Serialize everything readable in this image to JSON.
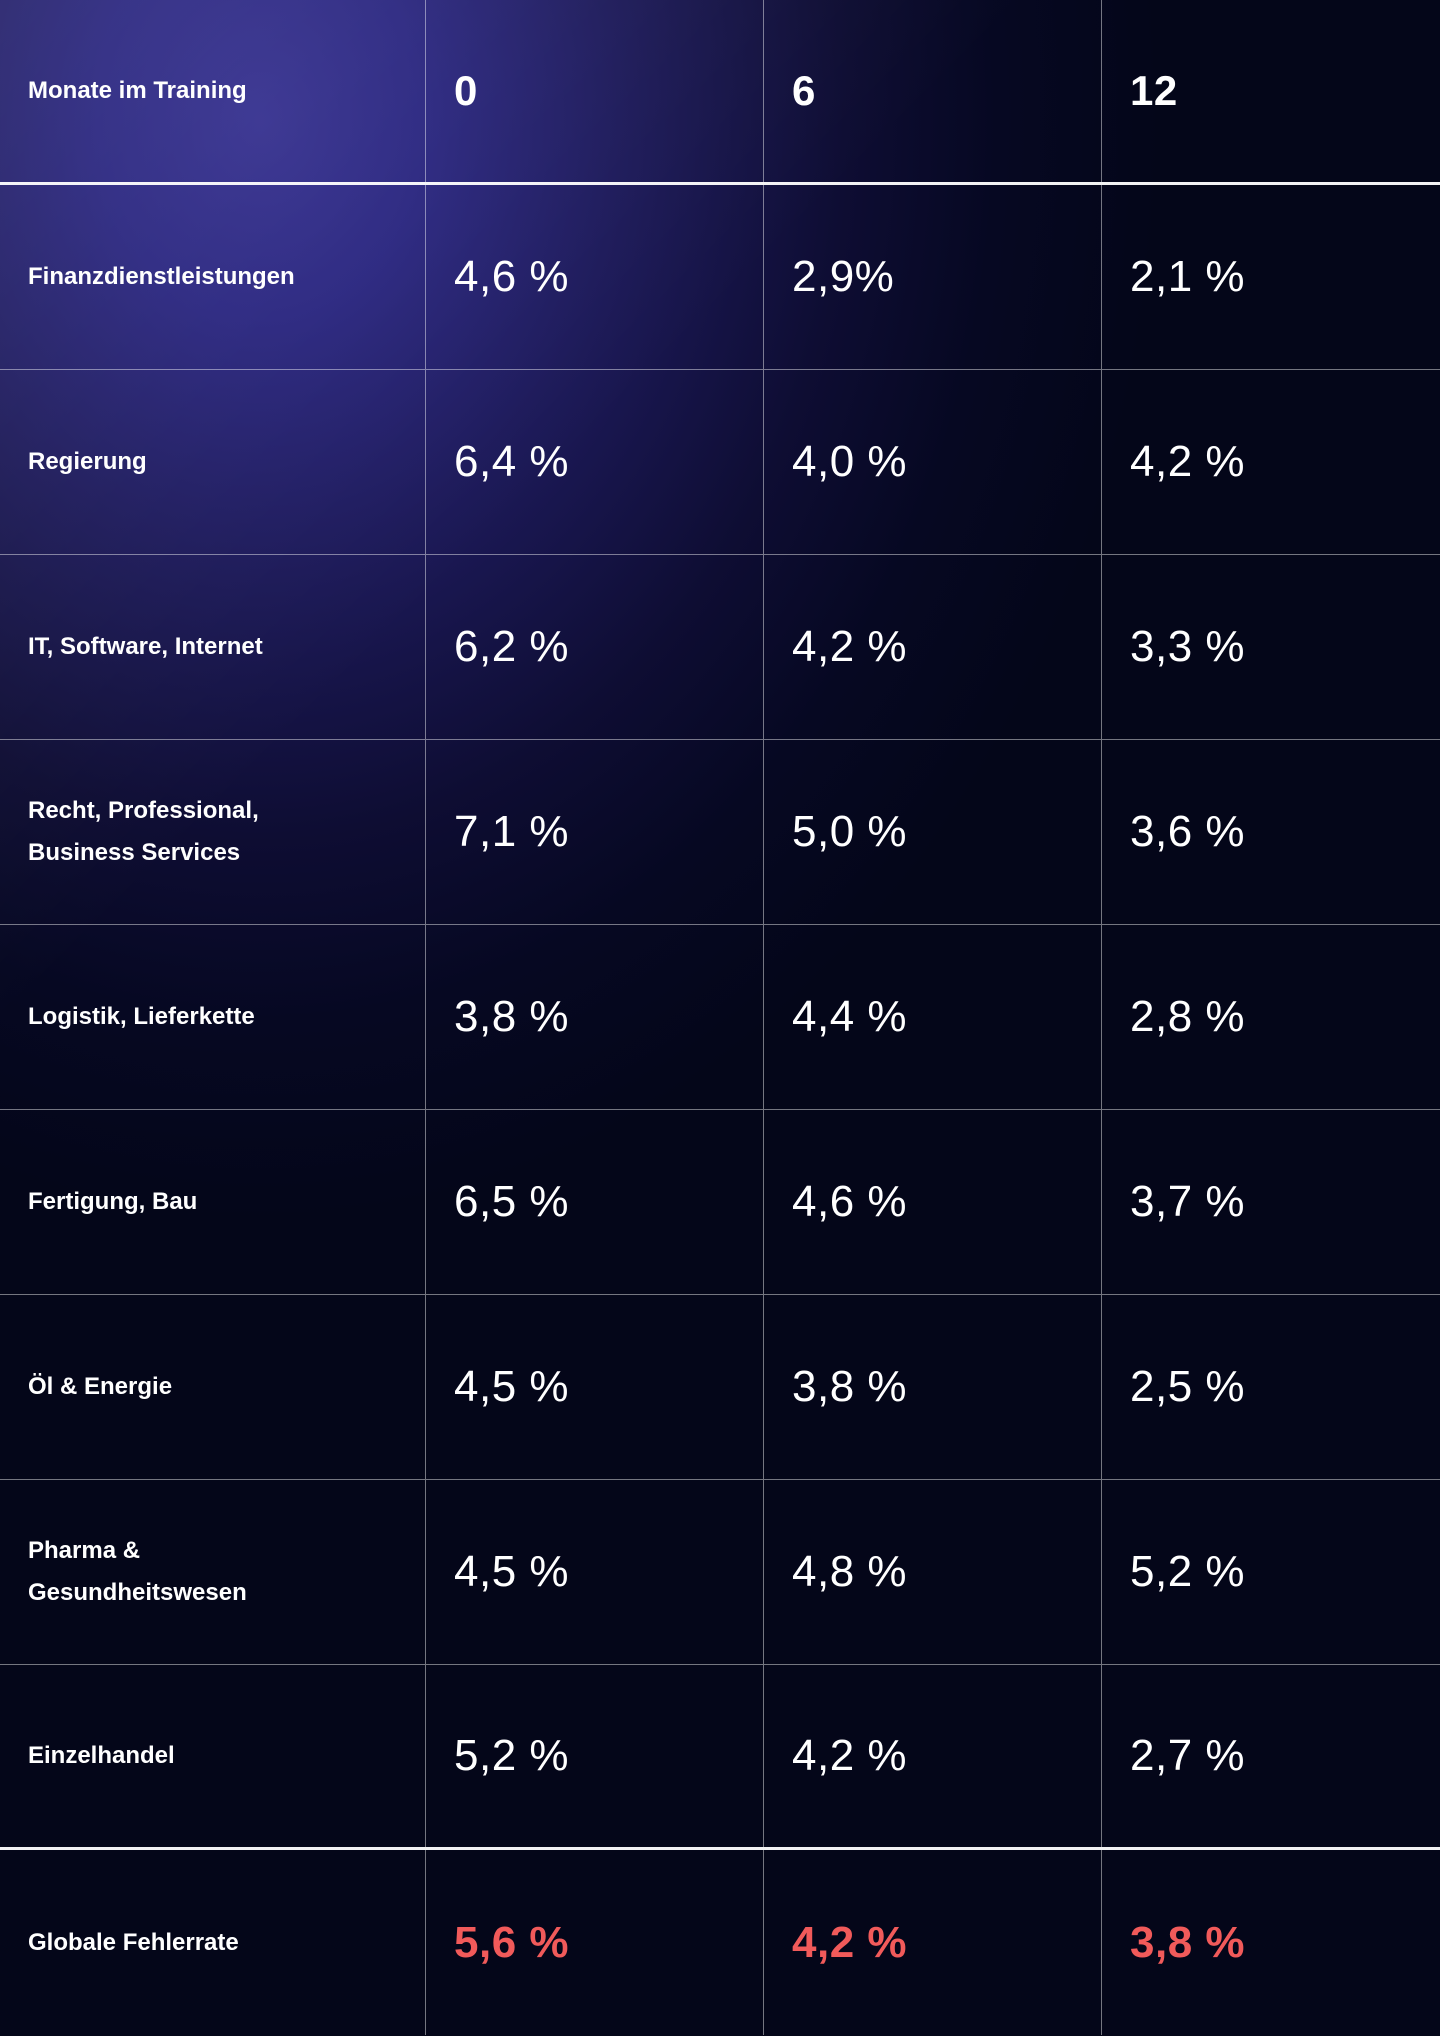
{
  "colors": {
    "text": "#ffffff",
    "highlight_red": "#f15a5a",
    "background_top_left": "#35308f",
    "background_bottom_right": "#040619"
  },
  "header": {
    "label": "Monate im Training",
    "columns": [
      "0",
      "6",
      "12"
    ]
  },
  "rows": [
    {
      "label": "Finanzdienstleistungen",
      "values": [
        "4,6 %",
        "2,9%",
        "2,1 %"
      ]
    },
    {
      "label": "Regierung",
      "values": [
        "6,4 %",
        "4,0 %",
        "4,2 %"
      ]
    },
    {
      "label": "IT, Software, Internet",
      "values": [
        "6,2 %",
        "4,2 %",
        "3,3 %"
      ]
    },
    {
      "label": "Recht, Professional,\nBusiness Services",
      "values": [
        "7,1 %",
        "5,0 %",
        "3,6 %"
      ]
    },
    {
      "label": "Logistik, Lieferkette",
      "values": [
        "3,8 %",
        "4,4 %",
        "2,8 %"
      ]
    },
    {
      "label": "Fertigung, Bau",
      "values": [
        "6,5 %",
        "4,6 %",
        "3,7 %"
      ]
    },
    {
      "label": "Öl & Energie",
      "values": [
        "4,5 %",
        "3,8 %",
        "2,5 %"
      ]
    },
    {
      "label": "Pharma &\nGesundheitswesen",
      "values": [
        "4,5  %",
        "4,8 %",
        "5,2 %"
      ]
    },
    {
      "label": "Einzelhandel",
      "values": [
        "5,2 %",
        "4,2 %",
        "2,7 %"
      ]
    }
  ],
  "total": {
    "label": "Globale Fehlerrate",
    "values": [
      "5,6 %",
      "4,2 %",
      "3,8 %"
    ]
  }
}
